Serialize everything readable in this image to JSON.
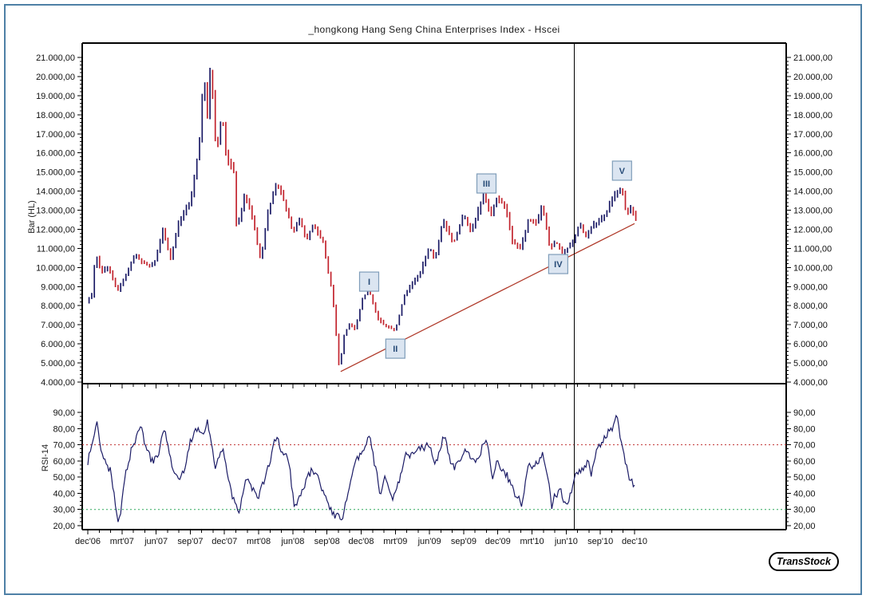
{
  "window": {
    "title": "_hongkong Hang Seng China Enterprises Index - Hscei"
  },
  "branding": {
    "logo_text": "TransStock"
  },
  "chart_data": [
    {
      "type": "bar",
      "subtype": "high-low-bars",
      "title": "_hongkong Hang Seng China Enterprises Index - Hscei",
      "panel_label": "Bar (HL)",
      "y_axis": {
        "min": 4000,
        "max": 21000,
        "major_step": 1000,
        "minor_step": 200,
        "tick_labels": [
          "21.000,00",
          "20.000,00",
          "19.000,00",
          "18.000,00",
          "17.000,00",
          "16.000,00",
          "15.000,00",
          "14.000,00",
          "13.000,00",
          "12.000,00",
          "11.000,00",
          "10.000,00",
          "9.000,00",
          "8.000,00",
          "7.000,00",
          "6.000,00",
          "5.000,00",
          "4.000,00"
        ]
      },
      "x_axis": {
        "tick_labels": [
          "dec'06",
          "mrt'07",
          "jun'07",
          "sep'07",
          "dec'07",
          "mrt'08",
          "jun'08",
          "sep'08",
          "dec'08",
          "mrt'09",
          "jun'09",
          "sep'09",
          "dec'09",
          "mrt'10",
          "jun'10",
          "sep'10",
          "dec'10"
        ],
        "months_per_label": 3,
        "total_months_plotted": 48.1
      },
      "series": {
        "name": "Hscei",
        "anchor_months": [
          0,
          0.5,
          0.8,
          1.3,
          1.9,
          2.7,
          3.4,
          4.3,
          4.8,
          5.5,
          6.0,
          6.7,
          7.4,
          8.1,
          9.1,
          9.9,
          10.3,
          10.6,
          10.9,
          11.4,
          11.9,
          12.3,
          12.9,
          13.2,
          13.9,
          14.6,
          15.3,
          15.9,
          16.7,
          17.4,
          18.1,
          18.7,
          19.3,
          19.9,
          20.8,
          21.2,
          21.6,
          22.2,
          22.6,
          23.1,
          23.6,
          24.2,
          24.8,
          25.6,
          26.2,
          27.1,
          27.9,
          28.6,
          29.3,
          30.1,
          30.6,
          31.3,
          32.2,
          32.7,
          33.1,
          33.7,
          34.2,
          34.9,
          35.5,
          36.0,
          36.8,
          37.4,
          38.1,
          38.8,
          39.5,
          40.0,
          40.7,
          41.2,
          41.8,
          42.7,
          43.3,
          43.8,
          44.2,
          44.8,
          45.5,
          46.3,
          47.0,
          47.4,
          47.8,
          48.1
        ],
        "anchor_values": [
          8250,
          8600,
          10900,
          9700,
          10100,
          8700,
          9600,
          10700,
          10300,
          10100,
          10400,
          12000,
          10450,
          12500,
          13400,
          16500,
          20400,
          17800,
          20900,
          15900,
          18200,
          15700,
          15300,
          11950,
          13900,
          12600,
          10450,
          12900,
          14600,
          13400,
          11990,
          12600,
          11560,
          12230,
          11400,
          10000,
          8760,
          4700,
          6500,
          7100,
          6800,
          8350,
          8800,
          7300,
          6950,
          6700,
          8470,
          9200,
          9700,
          11140,
          10430,
          12520,
          11350,
          12100,
          12810,
          11900,
          12600,
          13980,
          12640,
          13480,
          13060,
          11390,
          10970,
          12520,
          12300,
          13230,
          10930,
          11350,
          10730,
          11390,
          12230,
          11690,
          12100,
          12400,
          12810,
          13690,
          14270,
          12810,
          13230,
          12600
        ]
      },
      "annotations": {
        "elliott_waves": [
          {
            "label": "I",
            "month": 24.7,
            "value": 9260
          },
          {
            "label": "II",
            "month": 27.0,
            "value": 5750
          },
          {
            "label": "III",
            "month": 35.0,
            "value": 14400
          },
          {
            "label": "IV",
            "month": 41.3,
            "value": 10180
          },
          {
            "label": "V",
            "month": 46.9,
            "value": 15070
          }
        ],
        "trendline": {
          "from_month": 22.2,
          "from_value": 4550,
          "to_month": 48.0,
          "to_value": 12300
        },
        "crosshair_month": 42.7
      },
      "colors": {
        "bar_up": "#1b1b66",
        "bar_down": "#c2232d",
        "trendline": "#b03a2a",
        "crosshair": "#000000",
        "wave_box_fill": "#dbe5f1",
        "wave_box_border": "#7f9db9",
        "wave_text": "#274b77"
      }
    },
    {
      "type": "line",
      "panel_label": "RSI-14",
      "y_axis": {
        "min": 20,
        "max": 90,
        "major_step": 10,
        "minor_step": 2.5,
        "tick_labels": [
          "90,00",
          "80,00",
          "70,00",
          "60,00",
          "50,00",
          "40,00",
          "30,00",
          "20,00"
        ]
      },
      "levels": {
        "overbought": {
          "value": 70,
          "color": "#c03030"
        },
        "oversold": {
          "value": 30,
          "color": "#2fa85a"
        }
      },
      "series": {
        "name": "RSI-14",
        "anchor_months": [
          0,
          0.4,
          0.8,
          1.4,
          2.0,
          2.7,
          3.3,
          4.0,
          4.8,
          5.5,
          6.2,
          6.8,
          7.5,
          8.1,
          9.0,
          9.9,
          10.5,
          11.2,
          11.9,
          12.4,
          13.2,
          13.9,
          15.0,
          15.9,
          16.7,
          17.4,
          18.1,
          19.0,
          19.8,
          20.8,
          21.5,
          22.2,
          22.8,
          23.5,
          24.2,
          24.8,
          25.6,
          26.2,
          27.1,
          27.9,
          29.0,
          30.1,
          30.6,
          31.3,
          32.2,
          33.1,
          33.9,
          34.9,
          35.5,
          36.0,
          36.8,
          37.4,
          38.1,
          38.8,
          40.0,
          40.7,
          41.5,
          41.9,
          42.7,
          43.8,
          44.2,
          45.0,
          45.8,
          46.5,
          47.2,
          47.7,
          48.1
        ],
        "anchor_values": [
          60,
          72,
          87,
          62,
          55,
          22,
          48,
          72,
          78,
          58,
          62,
          76,
          50,
          42,
          68,
          80,
          84,
          60,
          68,
          48,
          28,
          56,
          33,
          58,
          72,
          60,
          32,
          45,
          55,
          38,
          30,
          21,
          40,
          52,
          64,
          74,
          42,
          46,
          40,
          62,
          68,
          74,
          62,
          78,
          52,
          66,
          58,
          77,
          52,
          62,
          55,
          38,
          33,
          58,
          63,
          28,
          48,
          36,
          45,
          62,
          55,
          68,
          78,
          86,
          60,
          45,
          43
        ],
        "line_color": "#1b1b66"
      }
    }
  ]
}
